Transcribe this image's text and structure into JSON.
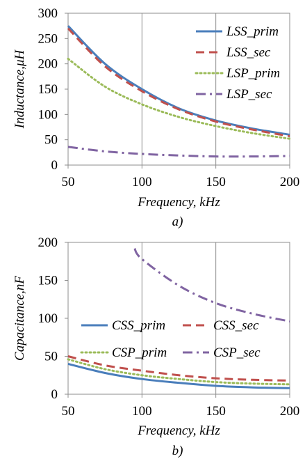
{
  "chart_data": [
    {
      "type": "line",
      "xlabel": "Frequency, kHz",
      "ylabel": "Inductance,μH",
      "caption": "a)",
      "xlim": [
        50,
        200
      ],
      "ylim": [
        0,
        300
      ],
      "x_ticks": [
        "50",
        "100",
        "150",
        "200"
      ],
      "y_ticks": [
        "0",
        "50",
        "100",
        "150",
        "200",
        "250",
        "300"
      ],
      "grid": "vertical lines at x ticks",
      "legend_position": "top-right",
      "x": [
        50,
        75,
        100,
        125,
        150,
        175,
        200
      ],
      "series": [
        {
          "name": "LSS_prim",
          "color": "#4a7ebb",
          "dash": "solid",
          "values": [
            275,
            200,
            150,
            112,
            88,
            72,
            60
          ]
        },
        {
          "name": "LSS_sec",
          "color": "#c0504d",
          "dash": "dash",
          "values": [
            270,
            195,
            146,
            110,
            86,
            70,
            57
          ]
        },
        {
          "name": "LSP_prim",
          "color": "#9bbb59",
          "dash": "dot",
          "values": [
            210,
            155,
            120,
            95,
            77,
            63,
            52
          ]
        },
        {
          "name": "LSP_sec",
          "color": "#8064a2",
          "dash": "dashdot",
          "values": [
            36,
            27,
            22,
            19,
            17,
            17,
            18
          ]
        }
      ]
    },
    {
      "type": "line",
      "xlabel": "Frequency, kHz",
      "ylabel": "Capacitance,nF",
      "caption": "b)",
      "xlim": [
        50,
        200
      ],
      "ylim": [
        0,
        200
      ],
      "x_ticks": [
        "50",
        "100",
        "150",
        "200"
      ],
      "y_ticks": [
        "0",
        "50",
        "100",
        "150",
        "200"
      ],
      "grid": "vertical lines at x ticks",
      "legend_position": "middle, two columns",
      "series": [
        {
          "name": "CSS_prim",
          "color": "#4a7ebb",
          "dash": "solid",
          "x": [
            50,
            75,
            100,
            125,
            150,
            175,
            200
          ],
          "values": [
            40,
            28,
            20,
            15,
            11,
            9,
            8
          ]
        },
        {
          "name": "CSS_sec",
          "color": "#c0504d",
          "dash": "dash",
          "x": [
            50,
            75,
            100,
            125,
            150,
            175,
            200
          ],
          "values": [
            50,
            38,
            31,
            25,
            21,
            19,
            18
          ]
        },
        {
          "name": "CSP_prim",
          "color": "#9bbb59",
          "dash": "dot",
          "x": [
            50,
            75,
            100,
            125,
            150,
            175,
            200
          ],
          "values": [
            46,
            33,
            25,
            20,
            16,
            14,
            13
          ]
        },
        {
          "name": "CSP_sec",
          "color": "#8064a2",
          "dash": "dashdot",
          "x": [
            95,
            100,
            125,
            150,
            175,
            200
          ],
          "values": [
            192,
            178,
            143,
            120,
            106,
            96
          ]
        }
      ]
    }
  ]
}
